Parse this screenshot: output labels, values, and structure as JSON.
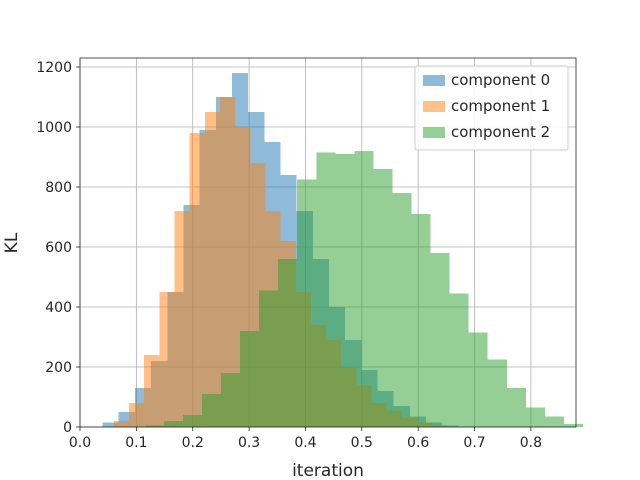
{
  "chart_data": {
    "type": "histogram",
    "xlabel": "iteration",
    "ylabel": "KL",
    "xlim": [
      0.0,
      0.88
    ],
    "ylim": [
      0,
      1230
    ],
    "xticks": [
      "0.0",
      "0.1",
      "0.2",
      "0.3",
      "0.4",
      "0.5",
      "0.6",
      "0.7",
      "0.8"
    ],
    "xtick_values": [
      0.0,
      0.1,
      0.2,
      0.3,
      0.4,
      0.5,
      0.6,
      0.7,
      0.8
    ],
    "yticks": [
      "0",
      "200",
      "400",
      "600",
      "800",
      "1000",
      "1200"
    ],
    "ytick_values": [
      0,
      200,
      400,
      600,
      800,
      1000,
      1200
    ],
    "grid": true,
    "legend_position": "top-right",
    "opacity": 0.5,
    "series": [
      {
        "name": "component 0",
        "color": "#1f77b4",
        "bin_width": 0.0287,
        "bins": [
          [
            0.04,
            15
          ],
          [
            0.0687,
            50
          ],
          [
            0.0974,
            130
          ],
          [
            0.1261,
            220
          ],
          [
            0.1548,
            450
          ],
          [
            0.1835,
            740
          ],
          [
            0.2122,
            990
          ],
          [
            0.2409,
            1100
          ],
          [
            0.2696,
            1180
          ],
          [
            0.2983,
            1050
          ],
          [
            0.327,
            950
          ],
          [
            0.3557,
            840
          ],
          [
            0.3844,
            720
          ],
          [
            0.4131,
            560
          ],
          [
            0.4418,
            400
          ],
          [
            0.4705,
            290
          ],
          [
            0.4992,
            190
          ],
          [
            0.5279,
            120
          ],
          [
            0.5566,
            70
          ],
          [
            0.5853,
            35
          ],
          [
            0.614,
            15
          ],
          [
            0.6427,
            5
          ]
        ]
      },
      {
        "name": "component 1",
        "color": "#ff7f0e",
        "bin_width": 0.0269,
        "bins": [
          [
            0.06,
            20
          ],
          [
            0.0869,
            80
          ],
          [
            0.1138,
            240
          ],
          [
            0.1407,
            450
          ],
          [
            0.1676,
            720
          ],
          [
            0.1945,
            980
          ],
          [
            0.2214,
            1050
          ],
          [
            0.2483,
            1100
          ],
          [
            0.2752,
            1000
          ],
          [
            0.3021,
            880
          ],
          [
            0.329,
            720
          ],
          [
            0.3559,
            620
          ],
          [
            0.3828,
            450
          ],
          [
            0.4097,
            340
          ],
          [
            0.4366,
            290
          ],
          [
            0.4635,
            200
          ],
          [
            0.4904,
            140
          ],
          [
            0.5173,
            80
          ],
          [
            0.5442,
            55
          ],
          [
            0.5711,
            30
          ],
          [
            0.598,
            15
          ],
          [
            0.6249,
            5
          ]
        ]
      },
      {
        "name": "component 2",
        "color": "#2ca02c",
        "bin_width": 0.0338,
        "bins": [
          [
            0.115,
            5
          ],
          [
            0.1488,
            20
          ],
          [
            0.1826,
            40
          ],
          [
            0.2164,
            110
          ],
          [
            0.2502,
            180
          ],
          [
            0.284,
            320
          ],
          [
            0.3178,
            455
          ],
          [
            0.3516,
            560
          ],
          [
            0.3854,
            825
          ],
          [
            0.4192,
            915
          ],
          [
            0.453,
            910
          ],
          [
            0.4868,
            920
          ],
          [
            0.5206,
            860
          ],
          [
            0.5544,
            780
          ],
          [
            0.5882,
            710
          ],
          [
            0.622,
            580
          ],
          [
            0.6558,
            445
          ],
          [
            0.6896,
            315
          ],
          [
            0.7234,
            225
          ],
          [
            0.7572,
            130
          ],
          [
            0.791,
            65
          ],
          [
            0.8248,
            35
          ],
          [
            0.8586,
            10
          ]
        ]
      }
    ]
  }
}
